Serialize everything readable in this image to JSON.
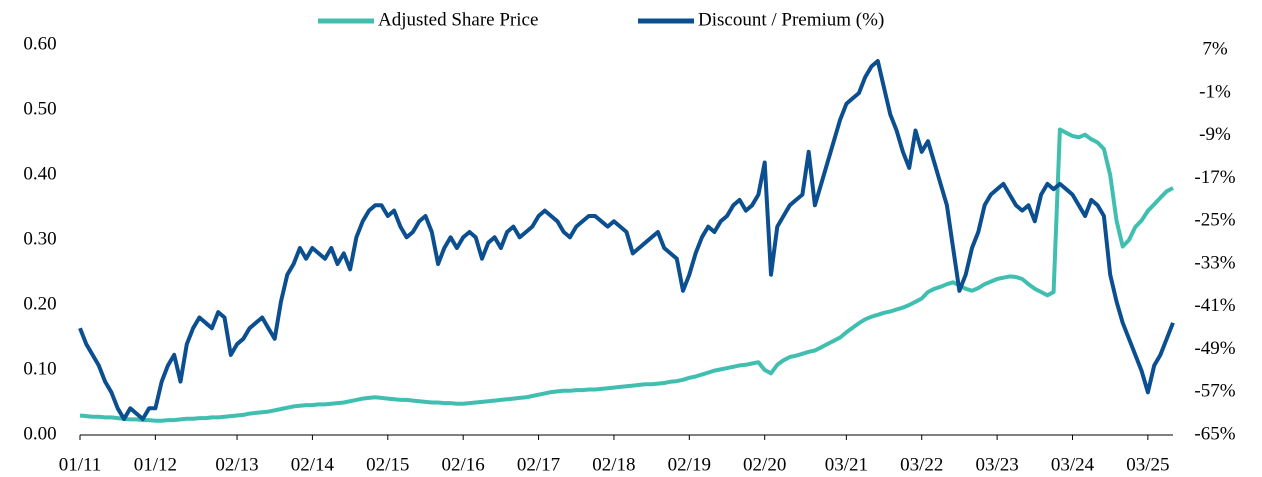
{
  "chart_data": {
    "type": "line",
    "x": [
      "01/11",
      "02/11",
      "03/11",
      "04/11",
      "05/11",
      "06/11",
      "07/11",
      "08/11",
      "09/11",
      "10/11",
      "11/11",
      "12/11",
      "01/12",
      "02/12",
      "03/12",
      "04/12",
      "05/12",
      "06/12",
      "07/12",
      "08/12",
      "09/12",
      "10/12",
      "11/12",
      "12/12",
      "01/13",
      "02/13",
      "03/13",
      "04/13",
      "05/13",
      "06/13",
      "07/13",
      "08/13",
      "09/13",
      "10/13",
      "11/13",
      "12/13",
      "01/14",
      "02/14",
      "03/14",
      "04/14",
      "05/14",
      "06/14",
      "07/14",
      "08/14",
      "09/14",
      "10/14",
      "11/14",
      "12/14",
      "01/15",
      "02/15",
      "03/15",
      "04/15",
      "05/15",
      "06/15",
      "07/15",
      "08/15",
      "09/15",
      "10/15",
      "11/15",
      "12/15",
      "01/16",
      "02/16",
      "03/16",
      "04/16",
      "05/16",
      "06/16",
      "07/16",
      "08/16",
      "09/16",
      "10/16",
      "11/16",
      "12/16",
      "01/17",
      "02/17",
      "03/17",
      "04/17",
      "05/17",
      "06/17",
      "07/17",
      "08/17",
      "09/17",
      "10/17",
      "11/17",
      "12/17",
      "01/18",
      "02/18",
      "03/18",
      "04/18",
      "05/18",
      "06/18",
      "07/18",
      "08/18",
      "09/18",
      "10/18",
      "11/18",
      "12/18",
      "01/19",
      "02/19",
      "03/19",
      "04/19",
      "05/19",
      "06/19",
      "07/19",
      "08/19",
      "09/19",
      "10/19",
      "11/19",
      "12/19",
      "01/20",
      "02/20",
      "03/20",
      "04/20",
      "05/20",
      "06/20",
      "07/20",
      "08/20",
      "09/20",
      "10/20",
      "11/20",
      "12/20",
      "01/21",
      "02/21",
      "03/21",
      "04/21",
      "05/21",
      "06/21",
      "07/21",
      "08/21",
      "09/21",
      "10/21",
      "11/21",
      "12/21",
      "01/22",
      "02/22",
      "03/22",
      "04/22",
      "05/22",
      "06/22",
      "07/22",
      "08/22",
      "09/22",
      "10/22",
      "11/22",
      "12/22",
      "01/23",
      "02/23",
      "03/23",
      "04/23",
      "05/23",
      "06/23",
      "07/23",
      "08/23",
      "09/23",
      "10/23",
      "11/23",
      "12/23",
      "01/24",
      "02/24",
      "03/24",
      "04/24",
      "05/24",
      "06/24",
      "07/24",
      "08/24",
      "09/24",
      "10/24",
      "11/24",
      "12/24",
      "01/25",
      "02/25",
      "03/25",
      "04/25",
      "05/25",
      "06/25",
      "07/25"
    ],
    "xticks": [
      "01/11",
      "01/12",
      "02/13",
      "02/14",
      "02/15",
      "02/16",
      "02/17",
      "02/18",
      "02/19",
      "02/20",
      "03/21",
      "03/22",
      "03/23",
      "03/24",
      "03/25"
    ],
    "ylim": [
      0,
      0.6
    ],
    "yticks": [
      {
        "value": 0,
        "label": "0.00"
      },
      {
        "value": 0.1,
        "label": "0.10"
      },
      {
        "value": 0.2,
        "label": "0.20"
      },
      {
        "value": 0.3,
        "label": "0.30"
      },
      {
        "value": 0.4,
        "label": "0.40"
      },
      {
        "value": 0.5,
        "label": "0.50"
      },
      {
        "value": 0.6,
        "label": "0.60"
      }
    ],
    "y2lim": [
      -65,
      8
    ],
    "y2ticks": [
      {
        "value": 7,
        "label": "7%"
      },
      {
        "value": -1,
        "label": "-1%"
      },
      {
        "value": -9,
        "label": "-9%"
      },
      {
        "value": -17,
        "label": "-17%"
      },
      {
        "value": -25,
        "label": "-25%"
      },
      {
        "value": -33,
        "label": "-33%"
      },
      {
        "value": -41,
        "label": "-41%"
      },
      {
        "value": -49,
        "label": "-49%"
      },
      {
        "value": -57,
        "label": "-57%"
      },
      {
        "value": -65,
        "label": "-65%"
      }
    ],
    "legend": "top",
    "series": [
      {
        "name": "Adjusted Share Price",
        "color": "#40bfb0",
        "values": [
          0.03,
          0.029,
          0.028,
          0.028,
          0.027,
          0.027,
          0.026,
          0.025,
          0.024,
          0.024,
          0.023,
          0.023,
          0.022,
          0.022,
          0.023,
          0.023,
          0.024,
          0.025,
          0.025,
          0.026,
          0.026,
          0.027,
          0.027,
          0.028,
          0.029,
          0.03,
          0.031,
          0.033,
          0.034,
          0.035,
          0.036,
          0.038,
          0.04,
          0.042,
          0.044,
          0.045,
          0.046,
          0.046,
          0.047,
          0.047,
          0.048,
          0.049,
          0.05,
          0.052,
          0.054,
          0.056,
          0.057,
          0.058,
          0.057,
          0.056,
          0.055,
          0.054,
          0.054,
          0.053,
          0.052,
          0.051,
          0.05,
          0.05,
          0.049,
          0.049,
          0.048,
          0.048,
          0.049,
          0.05,
          0.051,
          0.052,
          0.053,
          0.054,
          0.055,
          0.056,
          0.057,
          0.058,
          0.06,
          0.062,
          0.064,
          0.066,
          0.067,
          0.068,
          0.068,
          0.069,
          0.069,
          0.07,
          0.07,
          0.071,
          0.072,
          0.073,
          0.074,
          0.075,
          0.076,
          0.077,
          0.078,
          0.078,
          0.079,
          0.08,
          0.082,
          0.083,
          0.085,
          0.088,
          0.09,
          0.093,
          0.096,
          0.099,
          0.101,
          0.103,
          0.105,
          0.107,
          0.108,
          0.11,
          0.112,
          0.1,
          0.095,
          0.108,
          0.115,
          0.12,
          0.122,
          0.125,
          0.128,
          0.13,
          0.135,
          0.14,
          0.145,
          0.15,
          0.158,
          0.165,
          0.172,
          0.178,
          0.182,
          0.185,
          0.188,
          0.19,
          0.193,
          0.196,
          0.2,
          0.205,
          0.21,
          0.22,
          0.225,
          0.228,
          0.232,
          0.235,
          0.23,
          0.225,
          0.222,
          0.226,
          0.232,
          0.236,
          0.24,
          0.242,
          0.244,
          0.243,
          0.24,
          0.232,
          0.225,
          0.22,
          0.215,
          0.22,
          0.47,
          0.465,
          0.46,
          0.458,
          0.462,
          0.455,
          0.45,
          0.44,
          0.4,
          0.33,
          0.29,
          0.3,
          0.32,
          0.33,
          0.345,
          0.355,
          0.365,
          0.375,
          0.38
        ]
      },
      {
        "name": "Discount / Premium (%)",
        "color": "#0b4f91",
        "axis": "y2",
        "values": [
          -45,
          -48,
          -50,
          -52,
          -55,
          -57,
          -60,
          -62,
          -60,
          -61,
          -62,
          -60,
          -60,
          -55,
          -52,
          -50,
          -55,
          -48,
          -45,
          -43,
          -44,
          -45,
          -42,
          -43,
          -50,
          -48,
          -47,
          -45,
          -44,
          -43,
          -45,
          -47,
          -40,
          -35,
          -33,
          -30,
          -32,
          -30,
          -31,
          -32,
          -30,
          -33,
          -31,
          -34,
          -28,
          -25,
          -23,
          -22,
          -22,
          -24,
          -23,
          -26,
          -28,
          -27,
          -25,
          -24,
          -27,
          -33,
          -30,
          -28,
          -30,
          -28,
          -27,
          -28,
          -32,
          -29,
          -28,
          -30,
          -27,
          -26,
          -28,
          -27,
          -26,
          -24,
          -23,
          -24,
          -25,
          -27,
          -28,
          -26,
          -25,
          -24,
          -24,
          -25,
          -26,
          -25,
          -26,
          -27,
          -31,
          -30,
          -29,
          -28,
          -27,
          -30,
          -31,
          -32,
          -38,
          -35,
          -31,
          -28,
          -26,
          -27,
          -25,
          -24,
          -22,
          -21,
          -23,
          -22,
          -20,
          -14,
          -35,
          -26,
          -24,
          -22,
          -21,
          -20,
          -12,
          -22,
          -18,
          -14,
          -10,
          -6,
          -3,
          -2,
          -1,
          2,
          4,
          5,
          0,
          -5,
          -8,
          -12,
          -15,
          -8,
          -12,
          -10,
          -14,
          -18,
          -22,
          -30,
          -38,
          -35,
          -30,
          -27,
          -22,
          -20,
          -19,
          -18,
          -20,
          -22,
          -23,
          -22,
          -25,
          -20,
          -18,
          -19,
          -18,
          -19,
          -20,
          -22,
          -24,
          -21,
          -22,
          -24,
          -35,
          -40,
          -44,
          -47,
          -50,
          -53,
          -57,
          -52,
          -50,
          -47,
          -44
        ]
      }
    ]
  }
}
